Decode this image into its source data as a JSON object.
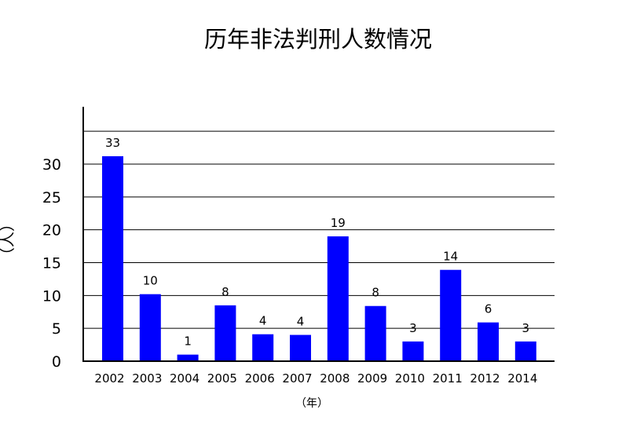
{
  "chart_data": {
    "type": "bar",
    "title": "历年非法判刑人数情况",
    "xlabel": "（年）",
    "ylabel": "（人）",
    "categories": [
      "2002",
      "2003",
      "2004",
      "2005",
      "2006",
      "2007",
      "2008",
      "2009",
      "2010",
      "2011",
      "2012",
      "2014"
    ],
    "values": [
      33,
      10,
      1,
      8,
      4,
      4,
      19,
      8,
      3,
      14,
      6,
      3
    ],
    "bar_heights_as_drawn": [
      31.2,
      10.2,
      1,
      8.5,
      4.1,
      4,
      19,
      8.4,
      3,
      13.9,
      5.9,
      3
    ],
    "yticks": [
      0,
      5,
      10,
      15,
      20,
      25,
      30
    ],
    "ylim": [
      0,
      35
    ],
    "grid": true,
    "bar_color": "#0000ff"
  }
}
